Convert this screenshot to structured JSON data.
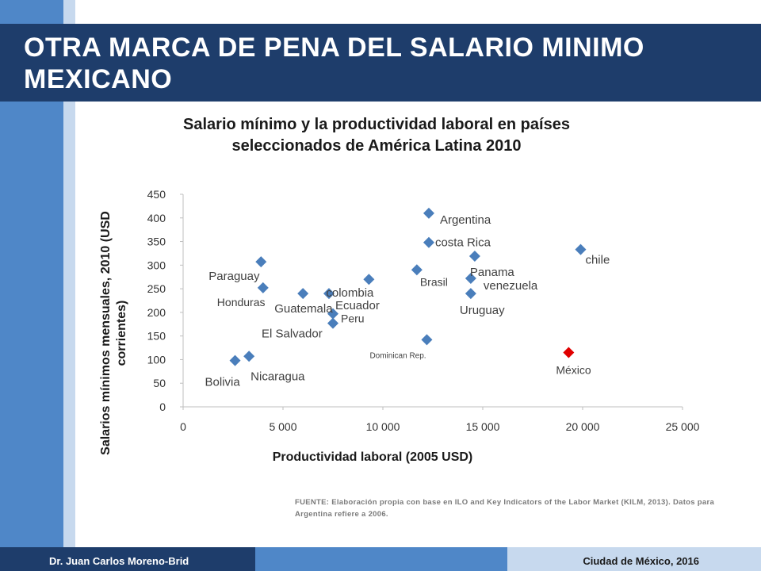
{
  "slide": {
    "title": "OTRA MARCA DE PENA DEL  SALARIO MINIMO MEXICANO",
    "source": "FUENTE: Elaboración propia con base en ILO and Key Indicators of the Labor Market (KILM, 2013). Datos para Argentina refiere a 2006.",
    "footer_left": "Dr. Juan Carlos Moreno-Brid",
    "footer_right": "Ciudad de México, 2016"
  },
  "colors": {
    "title_bar": "#1e3d6b",
    "accent_blue": "#4f87c8",
    "light_blue": "#c7d9ee",
    "marker": "#4a7ebb",
    "highlight_marker": "#e00000"
  },
  "chart_data": {
    "type": "scatter",
    "title": "Salario mínimo y la productividad laboral en países seleccionados de América Latina 2010",
    "xlabel": "Productividad laboral (2005 USD)",
    "ylabel": "Salarios mínimos mensuales, 2010 (USD corrientes)",
    "xlim": [
      0,
      25000
    ],
    "ylim": [
      0,
      450
    ],
    "x_ticks": [
      "0",
      "5 000",
      "10 000",
      "15 000",
      "20 000",
      "25 000"
    ],
    "y_ticks": [
      "0",
      "50",
      "100",
      "150",
      "200",
      "250",
      "300",
      "350",
      "400",
      "450"
    ],
    "grid": false,
    "legend": "none",
    "points": [
      {
        "label": "Argentina",
        "x": 12300,
        "y": 410
      },
      {
        "label": "costa Rica",
        "x": 12300,
        "y": 348
      },
      {
        "label": "Panama",
        "x": 14600,
        "y": 319
      },
      {
        "label": "chile",
        "x": 19900,
        "y": 333
      },
      {
        "label": "Paraguay",
        "x": 3900,
        "y": 307
      },
      {
        "label": "Brasil",
        "x": 11700,
        "y": 290
      },
      {
        "label": "venezuela",
        "x": 14400,
        "y": 272
      },
      {
        "label": "colombia",
        "x": 9300,
        "y": 270
      },
      {
        "label": "Honduras",
        "x": 4000,
        "y": 252
      },
      {
        "label": "Guatemala",
        "x": 6000,
        "y": 240
      },
      {
        "label": "Ecuador",
        "x": 7300,
        "y": 240
      },
      {
        "label": "Uruguay",
        "x": 14400,
        "y": 240
      },
      {
        "label": "Peru",
        "x": 7500,
        "y": 197
      },
      {
        "label": "El Salvador",
        "x": 7500,
        "y": 177
      },
      {
        "label": "Dominican Rep.",
        "x": 12200,
        "y": 142
      },
      {
        "label": "México",
        "x": 19300,
        "y": 115,
        "highlight": true
      },
      {
        "label": "Nicaragua",
        "x": 3300,
        "y": 107
      },
      {
        "label": "Bolivia",
        "x": 2600,
        "y": 98
      }
    ]
  }
}
